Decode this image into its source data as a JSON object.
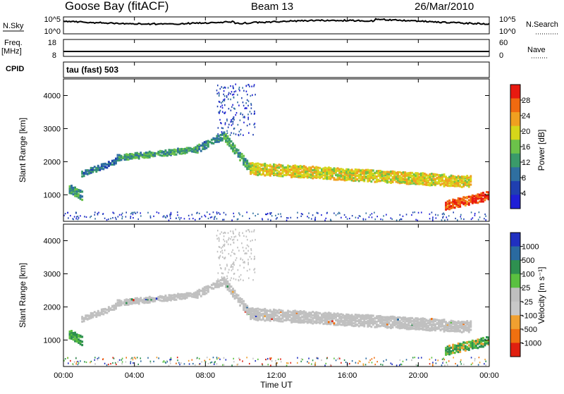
{
  "header": {
    "station": "Goose Bay (fitACF)",
    "beam": "Beam 13",
    "date": "26/Mar/2010"
  },
  "strip_panels": {
    "nsky_label": "N.Sky",
    "nsky_ticks": [
      "10^5",
      "10^0"
    ],
    "nsearch_label": "N.Search",
    "nsearch_ticks": [
      "10^5",
      "10^0"
    ],
    "freq_label": "Freq.",
    "freq_unit": "[MHz]",
    "freq_ticks": [
      "18",
      "8"
    ],
    "nave_label": "Nave",
    "nave_ticks": [
      "60",
      "0"
    ],
    "cpid_label": "CPID",
    "cpid_value": "tau (fast) 503"
  },
  "colors": {
    "power_scale": [
      "#1f1fd6",
      "#1f3fb0",
      "#2f6fa0",
      "#3a9a6a",
      "#6cc24a",
      "#d6d61a",
      "#f0a020",
      "#f06a10",
      "#e81a10"
    ],
    "velocity_scale": [
      "#2030c0",
      "#2a6aa0",
      "#2e9050",
      "#5ac040",
      "#bfbfbf",
      "#c8c8c8",
      "#f0a030",
      "#f07010",
      "#e02010"
    ],
    "ground_scatter": "#c0c0c0"
  },
  "chart_data": [
    {
      "type": "heatmap",
      "name": "power",
      "ylabel": "Slant Range [km]",
      "xlabel": "",
      "yticks": [
        "1000",
        "2000",
        "3000",
        "4000"
      ],
      "ylim": [
        200,
        4500
      ],
      "xlim": [
        0,
        24
      ],
      "colorbar_label": "Power [dB]",
      "colorbar_ticks": [
        "28",
        "24",
        "20",
        "16",
        "12",
        "8",
        "4"
      ],
      "bands": [
        {
          "x": [
            0.3,
            1.0
          ],
          "y_center": [
            1200,
            1000
          ],
          "width_km": 250,
          "level": 10
        },
        {
          "x": [
            1.0,
            3.0
          ],
          "y_center": [
            1650,
            2050
          ],
          "width_km": 160,
          "level": 7
        },
        {
          "x": [
            3.0,
            7.5
          ],
          "y_center": [
            2150,
            2400
          ],
          "width_km": 180,
          "level": 11
        },
        {
          "x": [
            7.5,
            9.0
          ],
          "y_center": [
            2400,
            2800
          ],
          "width_km": 200,
          "level": 9
        },
        {
          "x": [
            9.0,
            10.5
          ],
          "y_center": [
            2800,
            1800
          ],
          "width_km": 250,
          "level": 11
        },
        {
          "x": [
            10.5,
            23.0
          ],
          "y_center": [
            1800,
            1400
          ],
          "width_km": 320,
          "level": 18
        },
        {
          "x": [
            21.5,
            24.0
          ],
          "y_center": [
            700,
            1000
          ],
          "width_km": 250,
          "level": 26
        }
      ]
    },
    {
      "type": "heatmap",
      "name": "velocity",
      "ylabel": "Slant Range [km]",
      "xlabel": "Time UT",
      "xticks": [
        "00:00",
        "04:00",
        "08:00",
        "12:00",
        "16:00",
        "20:00",
        "00:00"
      ],
      "yticks": [
        "1000",
        "2000",
        "3000",
        "4000"
      ],
      "ylim": [
        200,
        4500
      ],
      "xlim": [
        0,
        24
      ],
      "colorbar_label": "Velocity [m s⁻¹]",
      "colorbar_ticks": [
        "1000",
        "500",
        "100",
        "25",
        "-25",
        "-100",
        "-500",
        "-1000"
      ]
    }
  ]
}
